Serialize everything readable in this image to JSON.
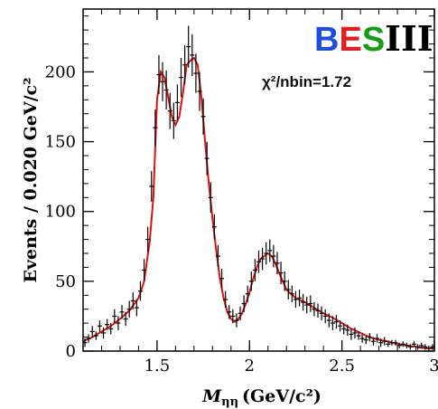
{
  "chart_data": {
    "type": "scatter",
    "xlabel_main": "M",
    "xlabel_sub": "ηη",
    "xlabel_unit": "(GeV/c²)",
    "ylabel": "Events / 0.020 GeV/c²",
    "xlim": [
      1.1,
      3.0
    ],
    "ylim": [
      0,
      245
    ],
    "xticks": [
      1.5,
      2,
      2.5,
      3
    ],
    "xtick_labels": [
      "1.5",
      "2",
      "2.5",
      "3"
    ],
    "yticks": [
      0,
      50,
      100,
      150,
      200
    ],
    "ytick_labels": [
      "0",
      "50",
      "100",
      "150",
      "200"
    ],
    "annotation": "χ²/nbin=1.72",
    "logo": {
      "b": "B",
      "e": "E",
      "s": "S",
      "iii": "III",
      "colors": {
        "b": "#1f4fd6",
        "e": "#e02020",
        "s": "#1a9a1a",
        "iii": "#000000"
      }
    },
    "series": [
      {
        "kind": "data",
        "x": [
          1.11,
          1.13,
          1.15,
          1.17,
          1.19,
          1.21,
          1.23,
          1.25,
          1.27,
          1.29,
          1.31,
          1.33,
          1.35,
          1.37,
          1.39,
          1.41,
          1.43,
          1.45,
          1.47,
          1.49,
          1.51,
          1.53,
          1.55,
          1.57,
          1.59,
          1.61,
          1.63,
          1.65,
          1.67,
          1.69,
          1.71,
          1.73,
          1.75,
          1.77,
          1.79,
          1.81,
          1.83,
          1.85,
          1.87,
          1.89,
          1.91,
          1.93,
          1.95,
          1.97,
          1.99,
          2.01,
          2.03,
          2.05,
          2.07,
          2.09,
          2.11,
          2.13,
          2.15,
          2.17,
          2.19,
          2.21,
          2.23,
          2.25,
          2.27,
          2.29,
          2.31,
          2.33,
          2.35,
          2.37,
          2.39,
          2.41,
          2.43,
          2.45,
          2.47,
          2.49,
          2.51,
          2.53,
          2.55,
          2.57,
          2.59,
          2.61,
          2.63,
          2.65,
          2.67,
          2.69,
          2.71,
          2.73,
          2.75,
          2.77,
          2.79,
          2.81,
          2.83,
          2.85,
          2.87,
          2.89,
          2.91,
          2.93,
          2.95,
          2.97,
          2.99
        ],
        "y": [
          6,
          9,
          14,
          11,
          18,
          13,
          19,
          16,
          25,
          20,
          28,
          23,
          30,
          36,
          31,
          43,
          58,
          80,
          118,
          160,
          198,
          193,
          187,
          172,
          165,
          178,
          196,
          205,
          218,
          212,
          199,
          186,
          168,
          138,
          110,
          89,
          68,
          52,
          37,
          28,
          25,
          22,
          27,
          34,
          41,
          50,
          58,
          64,
          66,
          70,
          72,
          68,
          63,
          56,
          50,
          44,
          41,
          37,
          38,
          35,
          33,
          34,
          30,
          29,
          27,
          25,
          22,
          20,
          21,
          18,
          16,
          15,
          12,
          13,
          11,
          9,
          8,
          10,
          7,
          9,
          6,
          7,
          5,
          6,
          6,
          4,
          5,
          4,
          3,
          5,
          3,
          4,
          3,
          2,
          3
        ],
        "err": [
          3,
          3,
          4,
          3,
          4,
          4,
          4,
          4,
          5,
          5,
          5,
          5,
          6,
          6,
          6,
          7,
          8,
          9,
          11,
          13,
          14,
          14,
          14,
          13,
          13,
          13,
          14,
          14,
          15,
          15,
          14,
          14,
          13,
          12,
          11,
          9,
          8,
          7,
          6,
          5,
          5,
          5,
          5,
          6,
          6,
          7,
          8,
          8,
          8,
          8,
          8,
          8,
          8,
          8,
          7,
          7,
          6,
          6,
          6,
          6,
          6,
          6,
          5,
          5,
          5,
          5,
          5,
          5,
          5,
          4,
          4,
          4,
          4,
          4,
          3,
          3,
          3,
          3,
          3,
          3,
          3,
          3,
          2,
          2,
          2,
          2,
          2,
          2,
          2,
          2,
          2,
          2,
          2,
          2,
          2
        ],
        "color": "#000000"
      },
      {
        "kind": "fit",
        "x": [
          1.1,
          1.15,
          1.2,
          1.25,
          1.3,
          1.35,
          1.4,
          1.43,
          1.46,
          1.48,
          1.5,
          1.52,
          1.54,
          1.56,
          1.58,
          1.6,
          1.62,
          1.64,
          1.66,
          1.68,
          1.7,
          1.72,
          1.74,
          1.76,
          1.78,
          1.8,
          1.82,
          1.84,
          1.86,
          1.88,
          1.9,
          1.92,
          1.94,
          1.96,
          1.98,
          2.0,
          2.02,
          2.04,
          2.06,
          2.08,
          2.1,
          2.12,
          2.14,
          2.16,
          2.18,
          2.2,
          2.25,
          2.3,
          2.35,
          2.4,
          2.45,
          2.5,
          2.55,
          2.6,
          2.65,
          2.7,
          2.75,
          2.8,
          2.85,
          2.9,
          2.95,
          3.0
        ],
        "y": [
          7,
          10,
          14,
          18,
          23,
          29,
          38,
          50,
          78,
          110,
          180,
          200,
          196,
          182,
          168,
          162,
          168,
          185,
          205,
          208,
          210,
          205,
          182,
          150,
          120,
          95,
          72,
          52,
          38,
          28,
          23,
          21,
          23,
          27,
          34,
          42,
          52,
          60,
          66,
          68,
          70,
          68,
          63,
          56,
          50,
          44,
          38,
          35,
          31,
          27,
          24,
          20,
          16,
          13,
          10,
          8,
          7,
          5,
          4,
          3,
          2,
          2
        ],
        "color": "#e01010"
      }
    ]
  }
}
